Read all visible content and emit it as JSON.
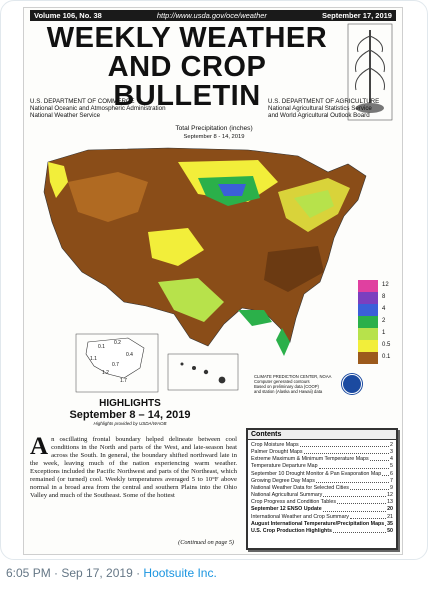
{
  "bulletin": {
    "volume": "Volume 106, No. 38",
    "url": "http://www.usda.gov/oce/weather",
    "date": "September 17, 2019",
    "title_line1": "WEEKLY WEATHER",
    "title_line2": "AND CROP BULLETIN",
    "left_agency": [
      "U.S. DEPARTMENT OF COMMERCE",
      "National Oceanic and Atmospheric Administration",
      "National Weather Service"
    ],
    "right_agency": [
      "U.S. DEPARTMENT OF AGRICULTURE",
      "National Agricultural Statistics Service",
      "and World Agricultural Outlook Board"
    ]
  },
  "map": {
    "title": "Total Precipitation (inches)",
    "subtitle": "September 8 - 14, 2019",
    "legend": [
      {
        "label": "12",
        "color": "#e040a0"
      },
      {
        "label": "8",
        "color": "#7b3fbf"
      },
      {
        "label": "4",
        "color": "#3b5fd9"
      },
      {
        "label": "2",
        "color": "#2bb04a"
      },
      {
        "label": "1",
        "color": "#b7e24b"
      },
      {
        "label": "0.5",
        "color": "#f2ee3a"
      },
      {
        "label": "0.1",
        "color": "#9c5a1c"
      }
    ],
    "cpc_note": [
      "CLIMATE PREDICTION CENTER, NOAA",
      "Computer generated contours",
      "Based on preliminary data (COOP)",
      "and station (Alaska and Hawaii) data"
    ],
    "alaska_values": [
      "0.1",
      "0.2",
      "1.1",
      "0.4",
      "0.7",
      "1.2",
      "1.7"
    ]
  },
  "highlights": {
    "heading": "HIGHLIGHTS",
    "dates": "September 8 – 14, 2019",
    "credit": "Highlights provided by USDA/WAOB",
    "dropcap": "A",
    "body": "n oscillating frontal boundary helped delineate between cool conditions in the North and parts of the West, and late-season heat across the South. In general, the boundary shifted northward late in the week, leaving much of the nation experiencing warm weather. Exceptions included the Pacific Northwest and parts of the Northeast, which remained (or turned) cool. Weekly temperatures averaged 5 to 10°F above normal in a broad area from the central and southern Plains into the Ohio Valley and much of the Southeast. Some of the hottest",
    "continued": "(Continued on page 5)"
  },
  "contents": {
    "heading": "Contents",
    "items": [
      {
        "name": "Crop Moisture Maps",
        "page": "2",
        "bold": false
      },
      {
        "name": "Palmer Drought Maps",
        "page": "3",
        "bold": false
      },
      {
        "name": "Extreme Maximum & Minimum Temperature Maps",
        "page": "4",
        "bold": false
      },
      {
        "name": "Temperature Departure Map",
        "page": "5",
        "bold": false
      },
      {
        "name": "September 10 Drought Monitor & Pan Evaporation Map",
        "page": "6",
        "bold": false
      },
      {
        "name": "Growing Degree Day Maps",
        "page": "7",
        "bold": false
      },
      {
        "name": "National Weather Data for Selected Cities",
        "page": "9",
        "bold": false
      },
      {
        "name": "National Agricultural Summary",
        "page": "12",
        "bold": false
      },
      {
        "name": "Crop Progress and Condition Tables",
        "page": "13",
        "bold": false
      },
      {
        "name": "September 12 ENSO Update",
        "page": "20",
        "bold": true
      },
      {
        "name": "International Weather and Crop Summary",
        "page": "21",
        "bold": false
      },
      {
        "name": "August International Temperature/Precipitation Maps",
        "page": "35",
        "bold": true
      },
      {
        "name": "U.S. Crop Production Highlights",
        "page": "50",
        "bold": true
      }
    ]
  },
  "footer": {
    "time": "6:05 PM · Sep 17, 2019 · ",
    "source": "Hootsuite Inc."
  }
}
